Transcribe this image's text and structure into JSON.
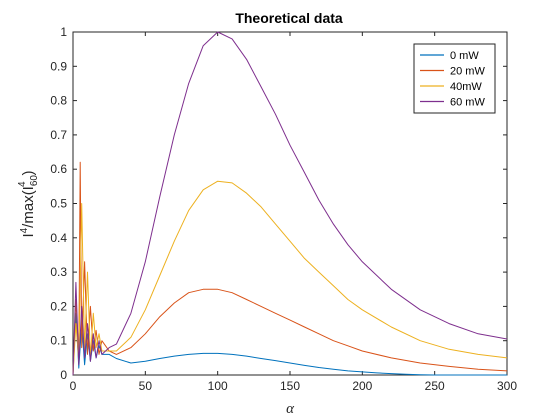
{
  "chart_data": {
    "type": "line",
    "title": "Theoretical data",
    "xlabel": "α",
    "ylabel": {
      "base": "I",
      "sup": "4",
      "mid": "/max(I",
      "sub": "60",
      "sup2": "4",
      "end": ")"
    },
    "xlim": [
      0,
      300
    ],
    "ylim": [
      0,
      1
    ],
    "xticks": [
      "0",
      "50",
      "100",
      "150",
      "200",
      "250",
      "300"
    ],
    "yticks": [
      "0",
      "0.1",
      "0.2",
      "0.3",
      "0.4",
      "0.5",
      "0.6",
      "0.7",
      "0.8",
      "0.9",
      "1"
    ],
    "grid": false,
    "legend_position": "top-right",
    "series": [
      {
        "name": "0 mW",
        "color": "#0072BD",
        "x": [
          0,
          2,
          4,
          6,
          8,
          10,
          12,
          14,
          16,
          18,
          20,
          25,
          30,
          40,
          50,
          60,
          70,
          80,
          90,
          100,
          110,
          120,
          130,
          140,
          150,
          160,
          170,
          180,
          190,
          200,
          210,
          220,
          230,
          240,
          250,
          260,
          280,
          300
        ],
        "y": [
          0.0,
          0.18,
          0.02,
          0.15,
          0.03,
          0.12,
          0.04,
          0.1,
          0.05,
          0.085,
          0.06,
          0.06,
          0.048,
          0.035,
          0.04,
          0.048,
          0.055,
          0.06,
          0.063,
          0.063,
          0.06,
          0.055,
          0.048,
          0.042,
          0.035,
          0.028,
          0.022,
          0.017,
          0.012,
          0.009,
          0.006,
          0.004,
          0.002,
          0.001,
          0.0,
          0.0,
          0.0,
          0.0
        ]
      },
      {
        "name": "20 mW",
        "color": "#D95319",
        "x": [
          0,
          2,
          4,
          5,
          6,
          8,
          10,
          12,
          14,
          16,
          18,
          20,
          25,
          30,
          40,
          50,
          60,
          70,
          80,
          90,
          100,
          110,
          120,
          130,
          140,
          150,
          160,
          170,
          180,
          190,
          200,
          220,
          240,
          260,
          280,
          300
        ],
        "y": [
          0.0,
          0.22,
          0.05,
          0.62,
          0.08,
          0.33,
          0.06,
          0.2,
          0.07,
          0.13,
          0.06,
          0.1,
          0.07,
          0.06,
          0.08,
          0.12,
          0.17,
          0.21,
          0.24,
          0.25,
          0.25,
          0.24,
          0.22,
          0.2,
          0.18,
          0.16,
          0.14,
          0.12,
          0.1,
          0.085,
          0.07,
          0.05,
          0.035,
          0.025,
          0.017,
          0.012
        ]
      },
      {
        "name": "40mW",
        "color": "#EDB120",
        "x": [
          0,
          2,
          4,
          6,
          8,
          10,
          12,
          14,
          16,
          18,
          20,
          25,
          30,
          40,
          50,
          60,
          70,
          80,
          90,
          100,
          110,
          120,
          130,
          140,
          150,
          160,
          170,
          180,
          190,
          200,
          220,
          240,
          260,
          280,
          300
        ],
        "y": [
          0.0,
          0.15,
          0.04,
          0.5,
          0.07,
          0.3,
          0.05,
          0.18,
          0.08,
          0.12,
          0.07,
          0.07,
          0.07,
          0.11,
          0.19,
          0.29,
          0.39,
          0.48,
          0.54,
          0.565,
          0.56,
          0.53,
          0.49,
          0.44,
          0.39,
          0.34,
          0.3,
          0.26,
          0.22,
          0.19,
          0.14,
          0.1,
          0.075,
          0.06,
          0.05
        ]
      },
      {
        "name": "60 mW",
        "color": "#7E2F8E",
        "x": [
          0,
          2,
          4,
          6,
          8,
          10,
          12,
          14,
          16,
          18,
          20,
          25,
          30,
          40,
          50,
          60,
          70,
          80,
          90,
          100,
          110,
          120,
          130,
          140,
          150,
          160,
          170,
          180,
          190,
          200,
          220,
          240,
          260,
          280,
          300
        ],
        "y": [
          0.0,
          0.27,
          0.03,
          0.2,
          0.05,
          0.15,
          0.04,
          0.12,
          0.05,
          0.1,
          0.06,
          0.08,
          0.09,
          0.18,
          0.33,
          0.52,
          0.7,
          0.85,
          0.96,
          1.0,
          0.98,
          0.92,
          0.84,
          0.76,
          0.67,
          0.59,
          0.51,
          0.44,
          0.38,
          0.33,
          0.25,
          0.19,
          0.15,
          0.12,
          0.105
        ]
      }
    ]
  }
}
